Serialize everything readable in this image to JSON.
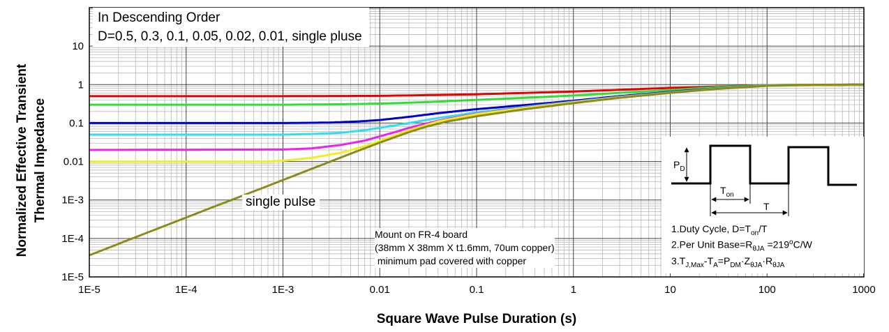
{
  "chart_data": {
    "type": "line",
    "title": "",
    "xlabel": "Square Wave Pulse Duration (s)",
    "ylabel_lines": [
      "Normalized Effective Transient",
      "Thermal Impedance"
    ],
    "xscale": "log",
    "yscale": "log",
    "xlim": [
      1e-05,
      1000
    ],
    "ylim": [
      1e-05,
      100
    ],
    "grid": true,
    "x_tick_labels": [
      "1E-5",
      "1E-4",
      "1E-3",
      "0.01",
      "0.1",
      "1",
      "10",
      "100",
      "1000"
    ],
    "y_tick_labels": [
      "10",
      "1",
      "0.1",
      "0.01",
      "1E-3",
      "1E-4",
      "1E-5"
    ],
    "legend_title": "In Descending Order",
    "legend_text": "D=0.5, 0.3, 0.1, 0.05, 0.02, 0.01, single pluse",
    "series": [
      {
        "name": "D=0.5",
        "color": "#e60000",
        "x": [
          1e-05,
          0.001,
          0.01,
          0.1,
          1,
          10,
          100,
          1000
        ],
        "y": [
          0.5,
          0.5,
          0.51,
          0.56,
          0.66,
          0.82,
          0.97,
          1.0
        ]
      },
      {
        "name": "D=0.3",
        "color": "#33dd33",
        "x": [
          1e-05,
          0.001,
          0.005,
          0.01,
          0.03,
          0.1,
          0.3,
          1,
          3,
          10,
          30,
          100,
          1000
        ],
        "y": [
          0.3,
          0.3,
          0.31,
          0.32,
          0.35,
          0.4,
          0.45,
          0.52,
          0.61,
          0.72,
          0.86,
          0.97,
          1.0
        ]
      },
      {
        "name": "D=0.1",
        "color": "#0000cc",
        "x": [
          1e-05,
          0.001,
          0.003,
          0.006,
          0.01,
          0.02,
          0.04,
          0.07,
          0.1,
          0.3,
          1,
          3,
          10,
          30,
          100,
          1000
        ],
        "y": [
          0.1,
          0.1,
          0.103,
          0.11,
          0.12,
          0.145,
          0.18,
          0.21,
          0.23,
          0.29,
          0.38,
          0.5,
          0.65,
          0.8,
          0.95,
          1.0
        ]
      },
      {
        "name": "D=0.05",
        "color": "#33ddee",
        "x": [
          1e-05,
          0.001,
          0.002,
          0.004,
          0.007,
          0.01,
          0.02,
          0.04,
          0.07,
          0.1,
          0.3,
          1,
          3,
          10,
          30,
          100,
          1000
        ],
        "y": [
          0.05,
          0.05,
          0.052,
          0.056,
          0.065,
          0.075,
          0.1,
          0.135,
          0.165,
          0.19,
          0.26,
          0.36,
          0.48,
          0.63,
          0.79,
          0.95,
          1.0
        ]
      },
      {
        "name": "D=0.02",
        "color": "#ee22ee",
        "x": [
          1e-05,
          0.001,
          0.002,
          0.004,
          0.007,
          0.01,
          0.015,
          0.02,
          0.04,
          0.07,
          0.1,
          0.3,
          1,
          3,
          10,
          30,
          100,
          1000
        ],
        "y": [
          0.02,
          0.0205,
          0.022,
          0.027,
          0.035,
          0.045,
          0.06,
          0.075,
          0.115,
          0.15,
          0.175,
          0.25,
          0.35,
          0.47,
          0.62,
          0.78,
          0.94,
          1.0
        ]
      },
      {
        "name": "D=0.01",
        "color": "#eeee22",
        "x": [
          1e-05,
          0.0007,
          0.001,
          0.002,
          0.004,
          0.007,
          0.01,
          0.015,
          0.02,
          0.04,
          0.07,
          0.1,
          0.3,
          1,
          3,
          10,
          30,
          100,
          1000
        ],
        "y": [
          0.01,
          0.01,
          0.0105,
          0.0125,
          0.017,
          0.025,
          0.034,
          0.05,
          0.065,
          0.11,
          0.145,
          0.17,
          0.245,
          0.345,
          0.465,
          0.615,
          0.775,
          0.93,
          1.0
        ]
      },
      {
        "name": "single pulse",
        "color": "#8b8b1a",
        "x": [
          1e-05,
          0.0001,
          0.001,
          0.005,
          0.01,
          0.02,
          0.03,
          0.05,
          0.1,
          0.3,
          1,
          3,
          10,
          30,
          100,
          300,
          1000
        ],
        "y": [
          3.65e-05,
          0.00035,
          0.0033,
          0.016,
          0.031,
          0.058,
          0.08,
          0.11,
          0.15,
          0.225,
          0.33,
          0.455,
          0.61,
          0.77,
          0.93,
          0.99,
          1.0
        ]
      }
    ],
    "annotations": {
      "single_pulse_label": "single pulse",
      "mount_lines": [
        "Mount on FR-4 board",
        "(38mm X 38mm X t1.6mm, 70um copper)",
        " minimum pad covered with copper"
      ],
      "inset": {
        "pd_main": "P",
        "pd_sub": "D",
        "ton_main": "T",
        "ton_sub": "on",
        "t_label": "T",
        "note1_pre": "1.Duty Cycle, D=T",
        "note1_sub": "on",
        "note1_post": "/T",
        "note2_pre": "2.Per Unit Base=R",
        "note2_sub": "θJA",
        "note2_mid": " =219",
        "note2_sup": "o",
        "note2_post": "C/W",
        "note3_a": "3.T",
        "note3_a_sub": "J,Max",
        "note3_b": "-T",
        "note3_b_sub": "A",
        "note3_c": "=P",
        "note3_c_sub": "DM",
        "note3_d": "·Z",
        "note3_d_sub": "θJA",
        "note3_e": "·R",
        "note3_e_sub": "θJA"
      }
    }
  }
}
